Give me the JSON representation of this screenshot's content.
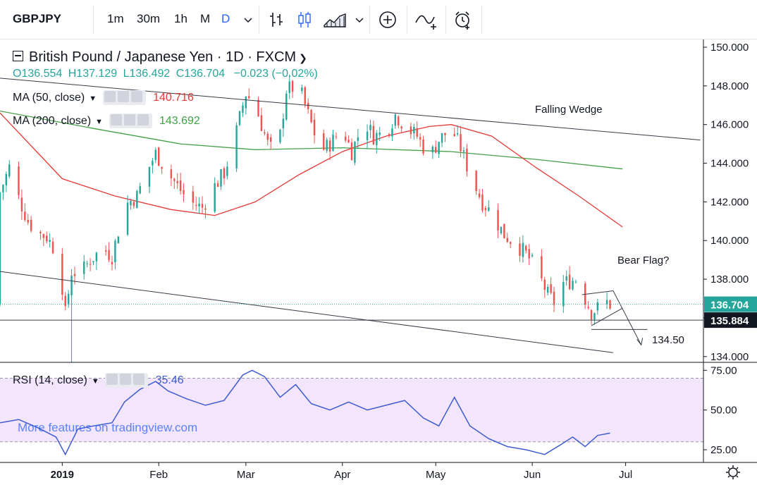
{
  "toolbar": {
    "symbol": "GBPJPY",
    "intervals": [
      "1m",
      "30m",
      "1h",
      "M",
      "D"
    ],
    "active_interval": "D",
    "icons": [
      "chevron-down-icon",
      "bar-chart-icon",
      "candles-icon",
      "area-chart-icon",
      "chevron-down-icon",
      "plus-circle-icon",
      "indicators-icon",
      "alert-clock-icon"
    ]
  },
  "header": {
    "title": "British Pound / Japanese Yen · 1D · FXCM",
    "ohlc": {
      "o": "O136.554",
      "h": "H137.129",
      "l": "L136.492",
      "c": "C136.704",
      "chg": "−0.023 (−0.02%)"
    }
  },
  "indicators": {
    "ma50": {
      "label": "MA (50, close)",
      "value": "140.716",
      "color": "#e53935"
    },
    "ma200": {
      "label": "MA (200, close)",
      "value": "143.692",
      "color": "#43a047"
    },
    "rsi": {
      "label": "RSI (14, close)",
      "value": "35.46",
      "color": "#3f5bd1"
    }
  },
  "annotations": {
    "falling_wedge": "Falling Wedge",
    "bear_flag": "Bear Flag?",
    "target": "134.50"
  },
  "price_labels": {
    "current": "136.704",
    "line": "135.884"
  },
  "watermark": "More features on tradingview.com",
  "colors": {
    "up": "#26a69a",
    "down": "#ef5350",
    "rsi_band": "#f3e5fb",
    "price_badge": "#26a69a",
    "line_badge": "#131722"
  },
  "chart_data": {
    "type": "candlestick",
    "y_ticks": [
      "150.000",
      "148.000",
      "146.000",
      "144.000",
      "142.000",
      "140.000",
      "138.000",
      "136.000",
      "134.000"
    ],
    "y_ticks_values": [
      150,
      148,
      146,
      144,
      142,
      140,
      138,
      136,
      134
    ],
    "ylim": [
      133.7,
      150.4
    ],
    "rsi_ticks": [
      "75.00",
      "50.00",
      "25.00"
    ],
    "rsi_ticks_values": [
      75,
      50,
      25
    ],
    "rsi_ylim": [
      17,
      80
    ],
    "rsi_band": [
      30,
      70
    ],
    "x_labels": [
      "2019",
      "Feb",
      "Mar",
      "Apr",
      "May",
      "Jun",
      "Jul"
    ],
    "x_label_days": [
      0,
      31,
      59,
      90,
      120,
      151,
      181
    ],
    "xlim": [
      -20,
      206
    ],
    "close_series": [
      {
        "day": -20,
        "c": 142.5
      },
      {
        "day": -17,
        "c": 143.8
      },
      {
        "day": -14,
        "c": 142.2
      },
      {
        "day": -11,
        "c": 141.0
      },
      {
        "day": -8,
        "c": 140.4
      },
      {
        "day": -5,
        "c": 140.2
      },
      {
        "day": -2,
        "c": 139.4
      },
      {
        "day": 0,
        "c": 137.6
      },
      {
        "day": 1,
        "c": 136.2
      },
      {
        "day": 3,
        "c": 138.4
      },
      {
        "day": 6,
        "c": 138.3
      },
      {
        "day": 9,
        "c": 139.0
      },
      {
        "day": 13,
        "c": 139.6
      },
      {
        "day": 16,
        "c": 139.2
      },
      {
        "day": 20,
        "c": 141.8
      },
      {
        "day": 24,
        "c": 142.3
      },
      {
        "day": 27,
        "c": 143.5
      },
      {
        "day": 30,
        "c": 144.5
      },
      {
        "day": 34,
        "c": 143.5
      },
      {
        "day": 38,
        "c": 142.6
      },
      {
        "day": 41,
        "c": 142.0
      },
      {
        "day": 45,
        "c": 141.7
      },
      {
        "day": 48,
        "c": 142.6
      },
      {
        "day": 52,
        "c": 143.5
      },
      {
        "day": 55,
        "c": 145.0
      },
      {
        "day": 58,
        "c": 147.0
      },
      {
        "day": 59,
        "c": 147.6
      },
      {
        "day": 62,
        "c": 147.0
      },
      {
        "day": 66,
        "c": 145.0
      },
      {
        "day": 69,
        "c": 144.3
      },
      {
        "day": 72,
        "c": 147.8
      },
      {
        "day": 76,
        "c": 148.0
      },
      {
        "day": 79,
        "c": 146.5
      },
      {
        "day": 83,
        "c": 144.6
      },
      {
        "day": 86,
        "c": 145.0
      },
      {
        "day": 90,
        "c": 145.8
      },
      {
        "day": 93,
        "c": 144.6
      },
      {
        "day": 97,
        "c": 146.2
      },
      {
        "day": 100,
        "c": 145.4
      },
      {
        "day": 104,
        "c": 145.6
      },
      {
        "day": 107,
        "c": 146.5
      },
      {
        "day": 111,
        "c": 145.8
      },
      {
        "day": 114,
        "c": 145.4
      },
      {
        "day": 118,
        "c": 144.3
      },
      {
        "day": 121,
        "c": 145.2
      },
      {
        "day": 125,
        "c": 145.8
      },
      {
        "day": 128,
        "c": 144.8
      },
      {
        "day": 131,
        "c": 143.4
      },
      {
        "day": 135,
        "c": 142.0
      },
      {
        "day": 138,
        "c": 141.4
      },
      {
        "day": 142,
        "c": 140.3
      },
      {
        "day": 146,
        "c": 139.8
      },
      {
        "day": 149,
        "c": 139.3
      },
      {
        "day": 152,
        "c": 138.6
      },
      {
        "day": 156,
        "c": 137.2
      },
      {
        "day": 158,
        "c": 136.8
      },
      {
        "day": 161,
        "c": 137.8
      },
      {
        "day": 165,
        "c": 138.0
      },
      {
        "day": 168,
        "c": 137.0
      },
      {
        "day": 170,
        "c": 136.3
      },
      {
        "day": 172,
        "c": 136.5
      },
      {
        "day": 174,
        "c": 136.9
      },
      {
        "day": 176,
        "c": 136.7
      }
    ],
    "ma50": [
      {
        "day": -20,
        "c": 146.6
      },
      {
        "day": 0,
        "c": 143.2
      },
      {
        "day": 17,
        "c": 142.3
      },
      {
        "day": 35,
        "c": 141.6
      },
      {
        "day": 49,
        "c": 141.3
      },
      {
        "day": 62,
        "c": 142.0
      },
      {
        "day": 76,
        "c": 143.4
      },
      {
        "day": 90,
        "c": 144.6
      },
      {
        "day": 104,
        "c": 145.4
      },
      {
        "day": 118,
        "c": 145.9
      },
      {
        "day": 125,
        "c": 146.0
      },
      {
        "day": 138,
        "c": 145.4
      },
      {
        "day": 152,
        "c": 143.8
      },
      {
        "day": 166,
        "c": 142.3
      },
      {
        "day": 180,
        "c": 140.7
      }
    ],
    "ma200": [
      {
        "day": -20,
        "c": 146.7
      },
      {
        "day": 10,
        "c": 145.8
      },
      {
        "day": 38,
        "c": 145.0
      },
      {
        "day": 62,
        "c": 144.7
      },
      {
        "day": 90,
        "c": 144.8
      },
      {
        "day": 125,
        "c": 144.6
      },
      {
        "day": 152,
        "c": 144.2
      },
      {
        "day": 180,
        "c": 143.7
      }
    ],
    "rsi": [
      {
        "day": -20,
        "c": 42
      },
      {
        "day": -14,
        "c": 44
      },
      {
        "day": -8,
        "c": 39
      },
      {
        "day": -2,
        "c": 33
      },
      {
        "day": 1,
        "c": 22
      },
      {
        "day": 5,
        "c": 38
      },
      {
        "day": 10,
        "c": 40
      },
      {
        "day": 16,
        "c": 42
      },
      {
        "day": 20,
        "c": 55
      },
      {
        "day": 25,
        "c": 63
      },
      {
        "day": 30,
        "c": 68
      },
      {
        "day": 34,
        "c": 62
      },
      {
        "day": 40,
        "c": 57
      },
      {
        "day": 46,
        "c": 53
      },
      {
        "day": 52,
        "c": 56
      },
      {
        "day": 58,
        "c": 72
      },
      {
        "day": 61,
        "c": 75
      },
      {
        "day": 65,
        "c": 71
      },
      {
        "day": 70,
        "c": 58
      },
      {
        "day": 75,
        "c": 66
      },
      {
        "day": 80,
        "c": 54
      },
      {
        "day": 86,
        "c": 50
      },
      {
        "day": 92,
        "c": 55
      },
      {
        "day": 98,
        "c": 50
      },
      {
        "day": 104,
        "c": 53
      },
      {
        "day": 110,
        "c": 56
      },
      {
        "day": 116,
        "c": 45
      },
      {
        "day": 121,
        "c": 40
      },
      {
        "day": 126,
        "c": 58
      },
      {
        "day": 131,
        "c": 40
      },
      {
        "day": 137,
        "c": 32
      },
      {
        "day": 143,
        "c": 27
      },
      {
        "day": 149,
        "c": 25
      },
      {
        "day": 155,
        "c": 22
      },
      {
        "day": 160,
        "c": 28
      },
      {
        "day": 164,
        "c": 33
      },
      {
        "day": 168,
        "c": 27
      },
      {
        "day": 172,
        "c": 34
      },
      {
        "day": 176,
        "c": 35.46
      }
    ],
    "trendlines": [
      {
        "name": "wedge-upper",
        "from": [
          -20,
          148.4
        ],
        "to": [
          205,
          145.2
        ]
      },
      {
        "name": "wedge-lower",
        "from": [
          -20,
          138.4
        ],
        "to": [
          177,
          134.2
        ]
      },
      {
        "name": "flag-upper",
        "from": [
          167,
          137.2
        ],
        "to": [
          177,
          137.4
        ]
      },
      {
        "name": "flag-lower",
        "from": [
          170,
          135.6
        ],
        "to": [
          180,
          136.5
        ]
      },
      {
        "name": "horizontal",
        "from": [
          170,
          135.4
        ],
        "to": [
          188,
          135.4
        ]
      },
      {
        "name": "target-arrow",
        "from": [
          177,
          137.4
        ],
        "to": [
          186,
          134.6
        ]
      }
    ]
  }
}
